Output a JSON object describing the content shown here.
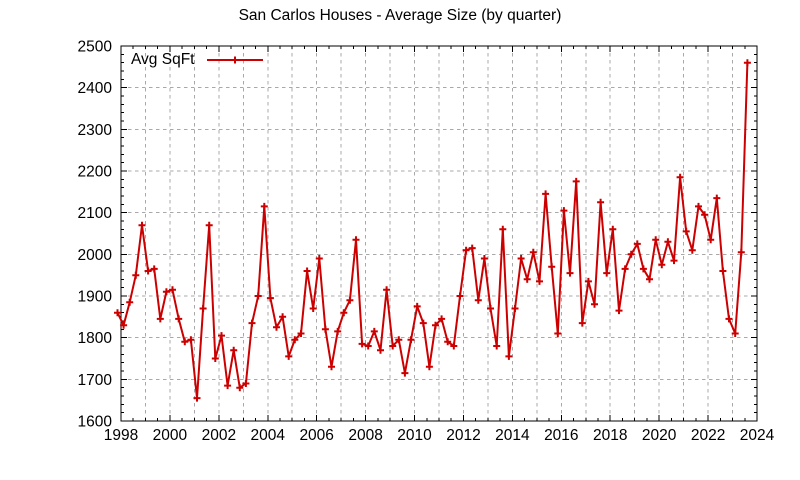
{
  "title": "San Carlos Houses - Average Size (by quarter)",
  "legend": {
    "label": "Avg SqFt"
  },
  "colors": {
    "line": "#cc0000",
    "grid": "#a8a8a8",
    "axis": "#000000",
    "text": "#000000",
    "background": "#ffffff"
  },
  "chart_data": {
    "type": "line",
    "title": "San Carlos Houses - Average Size (by quarter)",
    "xlabel": "",
    "ylabel": "",
    "legend_position": "top-left-inside",
    "grid": true,
    "x_start": "1997-Q4",
    "x_end": "2023-Q3",
    "frequency": "quarterly",
    "xlim": [
      1998,
      2024
    ],
    "ylim": [
      1600,
      2500
    ],
    "xticks": [
      1998,
      2000,
      2002,
      2004,
      2006,
      2008,
      2010,
      2012,
      2014,
      2016,
      2018,
      2020,
      2022,
      2024
    ],
    "yticks": [
      1600,
      1700,
      1800,
      1900,
      2000,
      2100,
      2200,
      2300,
      2400,
      2500
    ],
    "x_minor_step_years": 0.5,
    "y_minor_step": 20,
    "series": [
      {
        "name": "Avg SqFt",
        "color": "#cc0000",
        "marker": "plus",
        "values": [
          1860,
          1830,
          1885,
          1950,
          2070,
          1960,
          1965,
          1845,
          1910,
          1915,
          1845,
          1790,
          1795,
          1655,
          1870,
          2070,
          1750,
          1805,
          1685,
          1770,
          1680,
          1690,
          1835,
          1900,
          2115,
          1895,
          1825,
          1850,
          1755,
          1795,
          1810,
          1960,
          1870,
          1990,
          1820,
          1730,
          1815,
          1860,
          1890,
          2035,
          1785,
          1780,
          1815,
          1770,
          1915,
          1780,
          1795,
          1715,
          1795,
          1875,
          1835,
          1730,
          1830,
          1845,
          1790,
          1780,
          1900,
          2010,
          2015,
          1890,
          1990,
          1870,
          1780,
          2060,
          1755,
          1870,
          1990,
          1940,
          2005,
          1935,
          2145,
          1970,
          1810,
          2105,
          1955,
          2175,
          1835,
          1935,
          1880,
          2125,
          1955,
          2060,
          1865,
          1965,
          2000,
          2025,
          1965,
          1940,
          2035,
          1975,
          2030,
          1985,
          2185,
          2055,
          2010,
          2115,
          2095,
          2035,
          2135,
          1960,
          1845,
          1810,
          2005,
          2460
        ]
      }
    ]
  }
}
